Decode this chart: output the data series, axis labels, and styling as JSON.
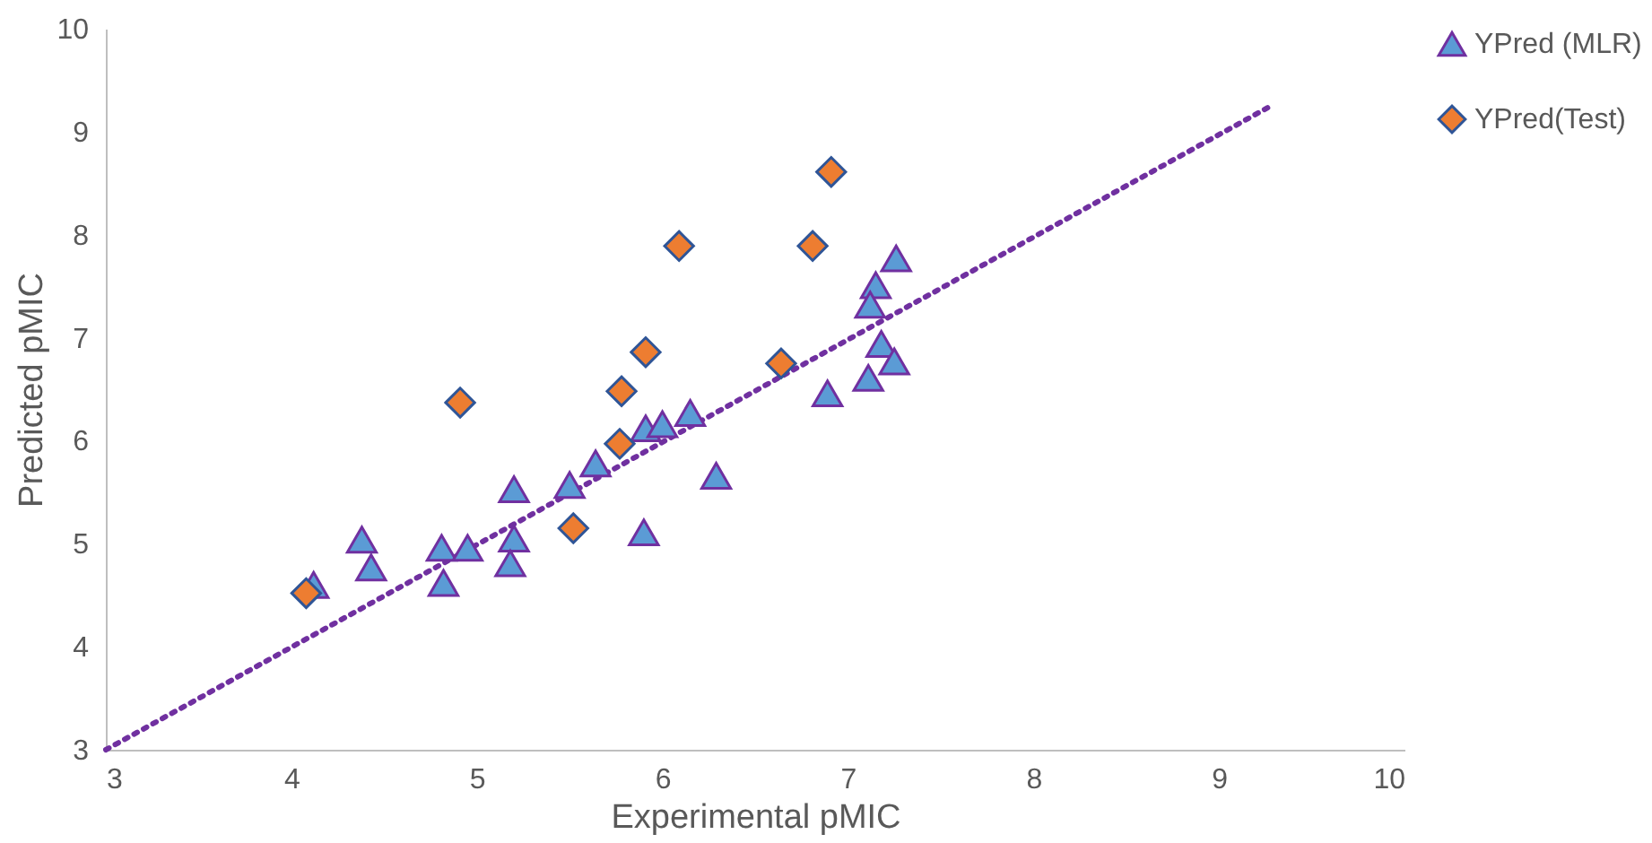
{
  "chart_data": {
    "type": "scatter",
    "xlabel": "Experimental pMIC",
    "ylabel": "Predicted pMIC",
    "xlim": [
      3,
      10
    ],
    "xticks": [
      3,
      4,
      5,
      6,
      7,
      8,
      9,
      10
    ],
    "ylim": [
      3,
      10
    ],
    "yticks": [
      3,
      4,
      5,
      6,
      7,
      8,
      9,
      10
    ],
    "grid": false,
    "legend": "right",
    "series": [
      {
        "name": "YPred (MLR)",
        "color": "#5b9bd5",
        "marker": "triangle",
        "x": [
          4.12,
          4.38,
          4.43,
          4.81,
          4.82,
          4.95,
          5.2,
          5.2,
          5.18,
          5.5,
          5.64,
          5.91,
          6.0,
          6.15,
          6.29,
          5.9,
          6.89,
          7.11,
          7.26,
          7.15,
          7.12,
          7.18,
          7.25
        ],
        "values": [
          4.6,
          5.04,
          4.77,
          4.96,
          4.62,
          4.96,
          5.53,
          5.05,
          4.81,
          5.57,
          5.78,
          6.12,
          6.16,
          6.27,
          5.66,
          5.11,
          6.46,
          6.61,
          7.77,
          7.51,
          7.32,
          6.94,
          6.77
        ]
      },
      {
        "name": "YPred(Test)",
        "color": "#ed7d31",
        "marker": "diamond",
        "x": [
          4.08,
          4.91,
          5.52,
          5.77,
          5.78,
          5.91,
          6.09,
          6.64,
          6.81,
          6.91
        ],
        "values": [
          4.52,
          6.37,
          5.15,
          5.97,
          6.48,
          6.86,
          7.89,
          6.75,
          7.89,
          8.61
        ]
      },
      {
        "type": "line",
        "color": "#7030a0",
        "line_style": "dotted",
        "marker": "none",
        "x": [
          3,
          9.27
        ],
        "values": [
          3,
          9.24
        ]
      }
    ]
  }
}
